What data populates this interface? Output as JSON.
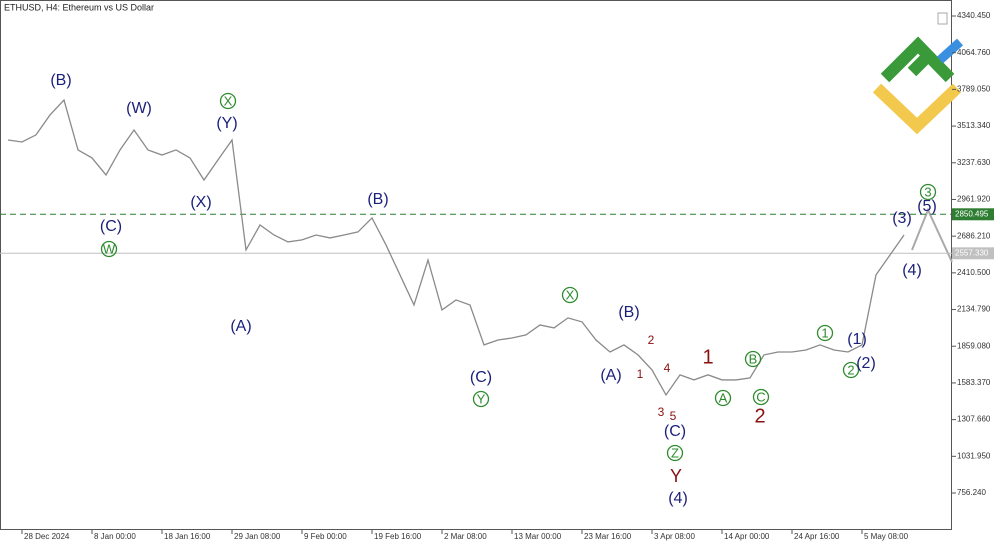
{
  "chart_data": {
    "type": "line",
    "title": "ETHUSD, H4:  Ethereum vs US Dollar",
    "categories": [
      null,
      "28 Dec 2024",
      null,
      null,
      null,
      null,
      "8 Jan 00:00",
      null,
      null,
      null,
      null,
      "18 Jan 16:00",
      null,
      null,
      null,
      null,
      "29 Jan 08:00",
      null,
      null,
      null,
      null,
      "9 Feb 00:00",
      null,
      null,
      null,
      null,
      "19 Feb 16:00",
      null,
      null,
      null,
      null,
      "2 Mar 08:00",
      null,
      null,
      null,
      null,
      "13 Mar 00:00",
      null,
      null,
      null,
      null,
      "23 Mar 16:00",
      null,
      null,
      null,
      null,
      "3 Apr 08:00",
      null,
      null,
      null,
      null,
      "14 Apr 00:00",
      null,
      null,
      null,
      null,
      "24 Apr 16:00",
      null,
      null,
      null,
      null,
      "5 May 08:00",
      null,
      null,
      null
    ],
    "series": [
      {
        "name": "ETHUSD",
        "color": "#8a8a8a",
        "values": [
          3409,
          3394,
          3447,
          3597,
          3709,
          3334,
          3274,
          3146,
          3334,
          3484,
          3334,
          3296,
          3334,
          3274,
          3108,
          3259,
          3409,
          2583,
          2770,
          2695,
          2643,
          2658,
          2695,
          2673,
          2695,
          2718,
          2823,
          2620,
          2395,
          2169,
          2507,
          2132,
          2207,
          2169,
          1869,
          1906,
          1921,
          1944,
          2019,
          1997,
          2072,
          2042,
          1906,
          1816,
          1869,
          1794,
          1681,
          1493,
          1644,
          1606,
          1644,
          1606,
          1606,
          1621,
          1794,
          1816,
          1816,
          1831,
          1869,
          1831,
          1816,
          1869,
          2395,
          2545,
          2695
        ]
      }
    ],
    "ylim": [
      478.3,
      4460.7
    ],
    "yticks": [
      {
        "value": 4340.45,
        "label": "4340.450"
      },
      {
        "value": 4064.76,
        "label": "4064.760"
      },
      {
        "value": 3789.05,
        "label": "3789.050"
      },
      {
        "value": 3513.34,
        "label": "3513.340"
      },
      {
        "value": 3237.63,
        "label": "3237.630"
      },
      {
        "value": 2961.92,
        "label": "2961.920"
      },
      {
        "value": 2686.21,
        "label": "2686.210"
      },
      {
        "value": 2410.5,
        "label": "2410.500"
      },
      {
        "value": 2134.79,
        "label": "2134.790"
      },
      {
        "value": 1859.08,
        "label": "1859.080"
      },
      {
        "value": 1583.37,
        "label": "1583.370"
      },
      {
        "value": 1307.66,
        "label": "1307.660"
      },
      {
        "value": 1031.95,
        "label": "1031.950"
      },
      {
        "value": 756.24,
        "label": "756.240"
      }
    ],
    "hlines": [
      {
        "value": 2850.495,
        "label": "2850.495",
        "color": "#2e7d32",
        "dashed": true
      },
      {
        "value": 2557.33,
        "label": "2557.330",
        "color": "#c0c0c0",
        "dashed": false
      }
    ],
    "wave_labels": [
      "(B)",
      "(W)",
      "X",
      "(Y)",
      "(C)",
      "W",
      "(X)",
      "(A)",
      "(B)",
      "(C)",
      "Y",
      "X",
      "(B)",
      "(A)",
      "2",
      "1",
      "4",
      "3",
      "5",
      "1",
      "B",
      "A",
      "C",
      "2",
      "(C)",
      "Z",
      "Y",
      "(4)",
      "1",
      "(1)",
      "2",
      "(2)",
      "(3)",
      "(5)",
      "3",
      "(4)"
    ]
  }
}
